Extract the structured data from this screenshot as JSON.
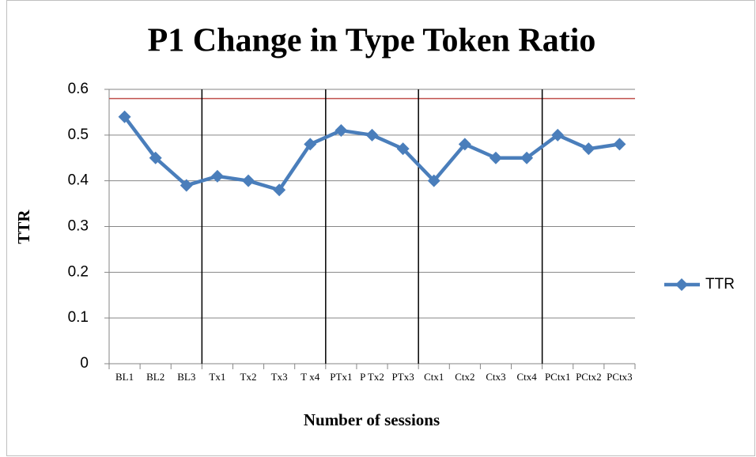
{
  "chart_data": {
    "type": "line",
    "title": "P1 Change in Type Token Ratio",
    "x_label": "Number of sessions",
    "y_label": "TTR",
    "categories": [
      "BL1",
      "BL2",
      "BL3",
      "Tx1",
      "Tx2",
      "Tx3",
      "T x4",
      "PTx1",
      "P Tx2",
      "PTx3",
      "Ctx1",
      "Ctx2",
      "Ctx3",
      "Ctx4",
      "PCtx1",
      "PCtx2",
      "PCtx3"
    ],
    "series": [
      {
        "name": "TTR",
        "color": "#4a7ebb",
        "values": [
          0.54,
          0.45,
          0.39,
          0.41,
          0.4,
          0.38,
          0.48,
          0.51,
          0.5,
          0.47,
          0.4,
          0.48,
          0.45,
          0.45,
          0.5,
          0.47,
          0.48
        ]
      }
    ],
    "ylim": [
      0,
      0.6
    ],
    "yticks": [
      0,
      0.1,
      0.2,
      0.3,
      0.4,
      0.5,
      0.6
    ],
    "grid": true,
    "reference_line": 0.58,
    "reference_color": "#c0504d",
    "phase_breaks_before": [
      "Tx1",
      "PTx1",
      "Ctx1",
      "PCtx1"
    ],
    "legend": "right"
  }
}
